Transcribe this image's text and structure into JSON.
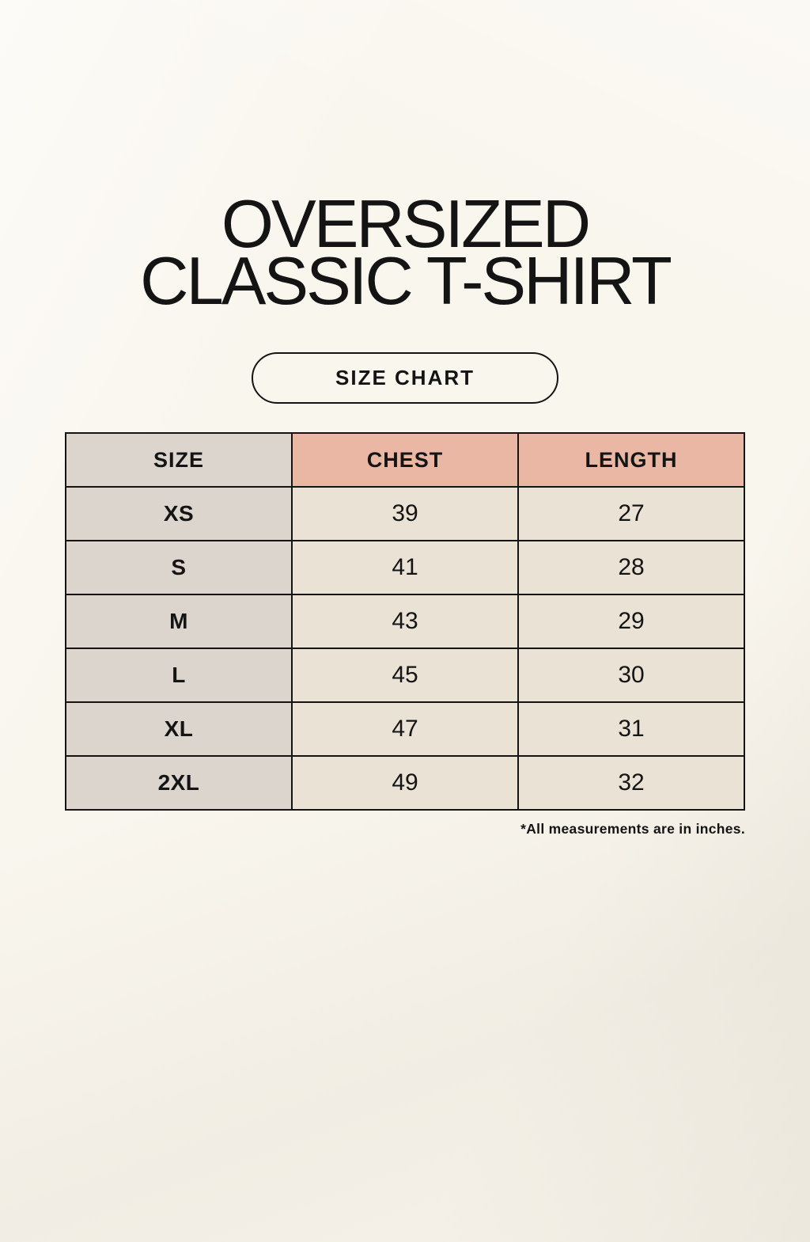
{
  "header": {
    "title_line1": "OVERSIZED",
    "title_line2": "CLASSIC T-SHIRT",
    "badge_label": "SIZE CHART"
  },
  "size_table": {
    "columns": [
      "SIZE",
      "CHEST",
      "LENGTH"
    ],
    "rows": [
      [
        "XS",
        "39",
        "27"
      ],
      [
        "S",
        "41",
        "28"
      ],
      [
        "M",
        "43",
        "29"
      ],
      [
        "L",
        "45",
        "30"
      ],
      [
        "XL",
        "47",
        "31"
      ],
      [
        "2XL",
        "49",
        "32"
      ]
    ]
  },
  "footnote": "*All measurements are in inches.",
  "colors": {
    "background": "#f9f6ee",
    "size_column_bg": "#dcd5ce",
    "header_accent_bg": "#ebb7a5",
    "cell_bg": "#e9e2d5",
    "border": "#141414",
    "text": "#141414"
  }
}
